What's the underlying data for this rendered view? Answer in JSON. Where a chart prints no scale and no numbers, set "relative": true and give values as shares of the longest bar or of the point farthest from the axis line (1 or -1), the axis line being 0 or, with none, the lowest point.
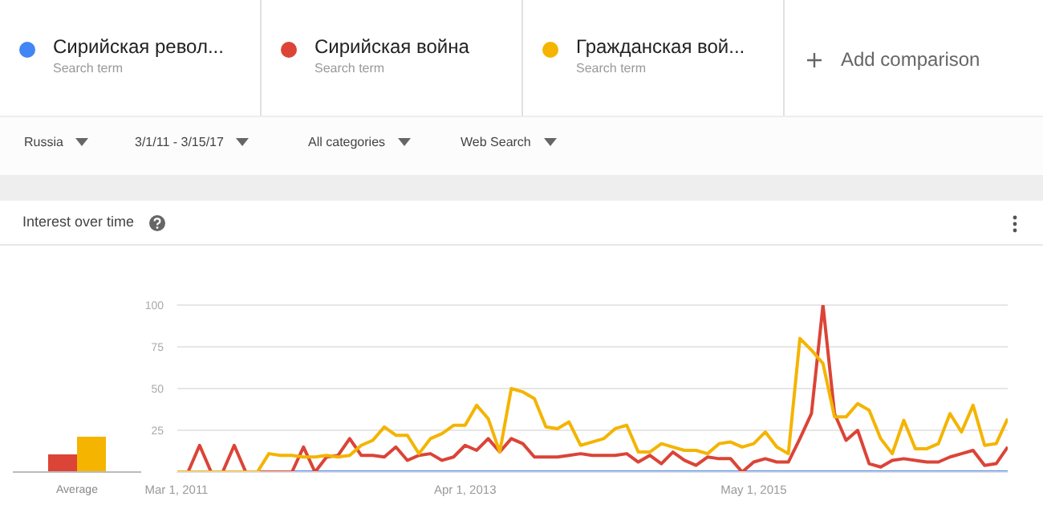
{
  "chart_data": [
    {
      "type": "bar",
      "categories": [
        "Average"
      ],
      "relative": true,
      "series": [
        {
          "color": "#db4437",
          "values": [
            0.5
          ]
        },
        {
          "color": "#f4b400",
          "values": [
            1
          ]
        }
      ]
    },
    {
      "type": "line",
      "title": "Interest over time",
      "x": [
        "2011-03",
        "2011-04",
        "2011-05",
        "2011-06",
        "2011-07",
        "2011-08",
        "2011-09",
        "2011-10",
        "2011-11",
        "2011-12",
        "2012-01",
        "2012-02",
        "2012-03",
        "2012-04",
        "2012-05",
        "2012-06",
        "2012-07",
        "2012-08",
        "2012-09",
        "2012-10",
        "2012-11",
        "2012-12",
        "2013-01",
        "2013-02",
        "2013-03",
        "2013-04",
        "2013-05",
        "2013-06",
        "2013-07",
        "2013-08",
        "2013-09",
        "2013-10",
        "2013-11",
        "2013-12",
        "2014-01",
        "2014-02",
        "2014-03",
        "2014-04",
        "2014-05",
        "2014-06",
        "2014-07",
        "2014-08",
        "2014-09",
        "2014-10",
        "2014-11",
        "2014-12",
        "2015-01",
        "2015-02",
        "2015-03",
        "2015-04",
        "2015-05",
        "2015-06",
        "2015-07",
        "2015-08",
        "2015-09",
        "2015-10",
        "2015-11",
        "2015-12",
        "2016-01",
        "2016-02",
        "2016-03",
        "2016-04",
        "2016-05",
        "2016-06",
        "2016-07",
        "2016-08",
        "2016-09",
        "2016-10",
        "2016-11",
        "2016-12",
        "2017-01",
        "2017-02",
        "2017-03"
      ],
      "series": [
        {
          "name": "Сирийская револ...",
          "color": "#4285f4",
          "values": [
            null,
            null,
            null,
            null,
            null,
            null,
            null,
            null,
            null,
            0,
            0,
            0,
            0,
            0,
            0,
            0,
            0,
            0,
            0,
            0,
            0,
            0,
            0,
            0,
            0,
            0,
            0,
            0,
            0,
            0,
            0,
            0,
            0,
            0,
            0,
            0,
            0,
            0,
            0,
            0,
            0,
            0,
            0,
            0,
            0,
            0,
            0,
            0,
            0,
            0,
            0,
            0,
            0,
            0,
            0,
            0,
            0,
            0,
            0,
            0,
            0,
            0,
            0,
            0,
            0,
            0,
            0,
            0,
            0,
            0,
            0,
            0,
            0
          ]
        },
        {
          "name": "Сирийская война",
          "color": "#db4437",
          "values": [
            0,
            0,
            16,
            0,
            0,
            16,
            0,
            0,
            0,
            0,
            0,
            15,
            0,
            9,
            10,
            20,
            10,
            10,
            9,
            15,
            7,
            10,
            11,
            7,
            9,
            16,
            13,
            20,
            12,
            20,
            17,
            9,
            9,
            9,
            10,
            11,
            10,
            10,
            10,
            11,
            6,
            10,
            5,
            12,
            7,
            4,
            9,
            8,
            8,
            0,
            6,
            8,
            6,
            6,
            20,
            35,
            100,
            35,
            19,
            25,
            5,
            3,
            7,
            8,
            7,
            6,
            6,
            9,
            11,
            13,
            4,
            5,
            15
          ]
        },
        {
          "name": "Гражданская вой...",
          "color": "#f4b400",
          "values": [
            0,
            0,
            0,
            0,
            0,
            0,
            0,
            0,
            11,
            10,
            10,
            9,
            9,
            10,
            9,
            10,
            16,
            19,
            27,
            22,
            22,
            11,
            20,
            23,
            28,
            28,
            40,
            32,
            12,
            50,
            48,
            44,
            27,
            26,
            30,
            16,
            18,
            20,
            26,
            28,
            12,
            12,
            17,
            15,
            13,
            13,
            11,
            17,
            18,
            15,
            17,
            24,
            15,
            11,
            80,
            73,
            65,
            33,
            33,
            41,
            37,
            20,
            11,
            31,
            14,
            14,
            17,
            35,
            24,
            40,
            16,
            17,
            32
          ]
        }
      ],
      "xlim": [
        "2011-03",
        "2017-03"
      ],
      "xticks": [
        {
          "value": "2011-03",
          "label": "Mar 1, 2011"
        },
        {
          "value": "2013-04",
          "label": "Apr 1, 2013"
        },
        {
          "value": "2015-05",
          "label": "May 1, 2015"
        }
      ],
      "ylim": [
        0,
        100
      ],
      "yticks": [
        {
          "value": 0,
          "label": null
        },
        25,
        50,
        75,
        100
      ],
      "grid": "y",
      "legend": "top",
      "marker": "none",
      "line_style": "solid",
      "annotations": [
        "Search term",
        "Search term",
        "Search term",
        "Add comparison",
        "Russia",
        "3/1/11 - 3/15/17",
        "All categories",
        "Web Search"
      ]
    }
  ]
}
